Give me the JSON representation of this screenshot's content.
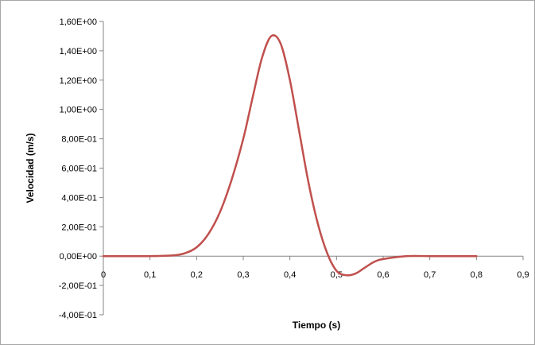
{
  "chart_data": {
    "type": "line",
    "title": "",
    "xlabel": "Tiempo (s)",
    "ylabel": "Velocidad  (m/s)",
    "xlim": [
      0,
      0.9
    ],
    "ylim": [
      -0.4,
      1.6
    ],
    "xticks": [
      0,
      0.1,
      0.2,
      0.3,
      0.4,
      0.5,
      0.6,
      0.7,
      0.8,
      0.9
    ],
    "xtick_labels": [
      "0",
      "0,1",
      "0,2",
      "0,3",
      "0,4",
      "0,5",
      "0,6",
      "0,7",
      "0,8",
      "0,9"
    ],
    "yticks": [
      -0.4,
      -0.2,
      0,
      0.2,
      0.4,
      0.6,
      0.8,
      1.0,
      1.2,
      1.4,
      1.6
    ],
    "ytick_labels": [
      "-4,00E-01",
      "-2,00E-01",
      "0,00E+00",
      "2,00E-01",
      "4,00E-01",
      "6,00E-01",
      "8,00E-01",
      "1,00E+00",
      "1,20E+00",
      "1,40E+00",
      "1,60E+00"
    ],
    "grid": false,
    "legend": "none",
    "series": [
      {
        "color": "#c0504d",
        "x": [
          0,
          0.05,
          0.1,
          0.15,
          0.175,
          0.2,
          0.225,
          0.25,
          0.275,
          0.3,
          0.32,
          0.34,
          0.36,
          0.38,
          0.4,
          0.42,
          0.44,
          0.46,
          0.48,
          0.5,
          0.52,
          0.54,
          0.56,
          0.58,
          0.6,
          0.65,
          0.7,
          0.75,
          0.8
        ],
        "y": [
          0,
          0,
          0,
          0.005,
          0.02,
          0.06,
          0.15,
          0.3,
          0.52,
          0.8,
          1.08,
          1.35,
          1.5,
          1.45,
          1.2,
          0.85,
          0.5,
          0.22,
          0.02,
          -0.1,
          -0.13,
          -0.12,
          -0.08,
          -0.04,
          -0.02,
          0,
          0,
          0,
          0
        ]
      }
    ]
  }
}
